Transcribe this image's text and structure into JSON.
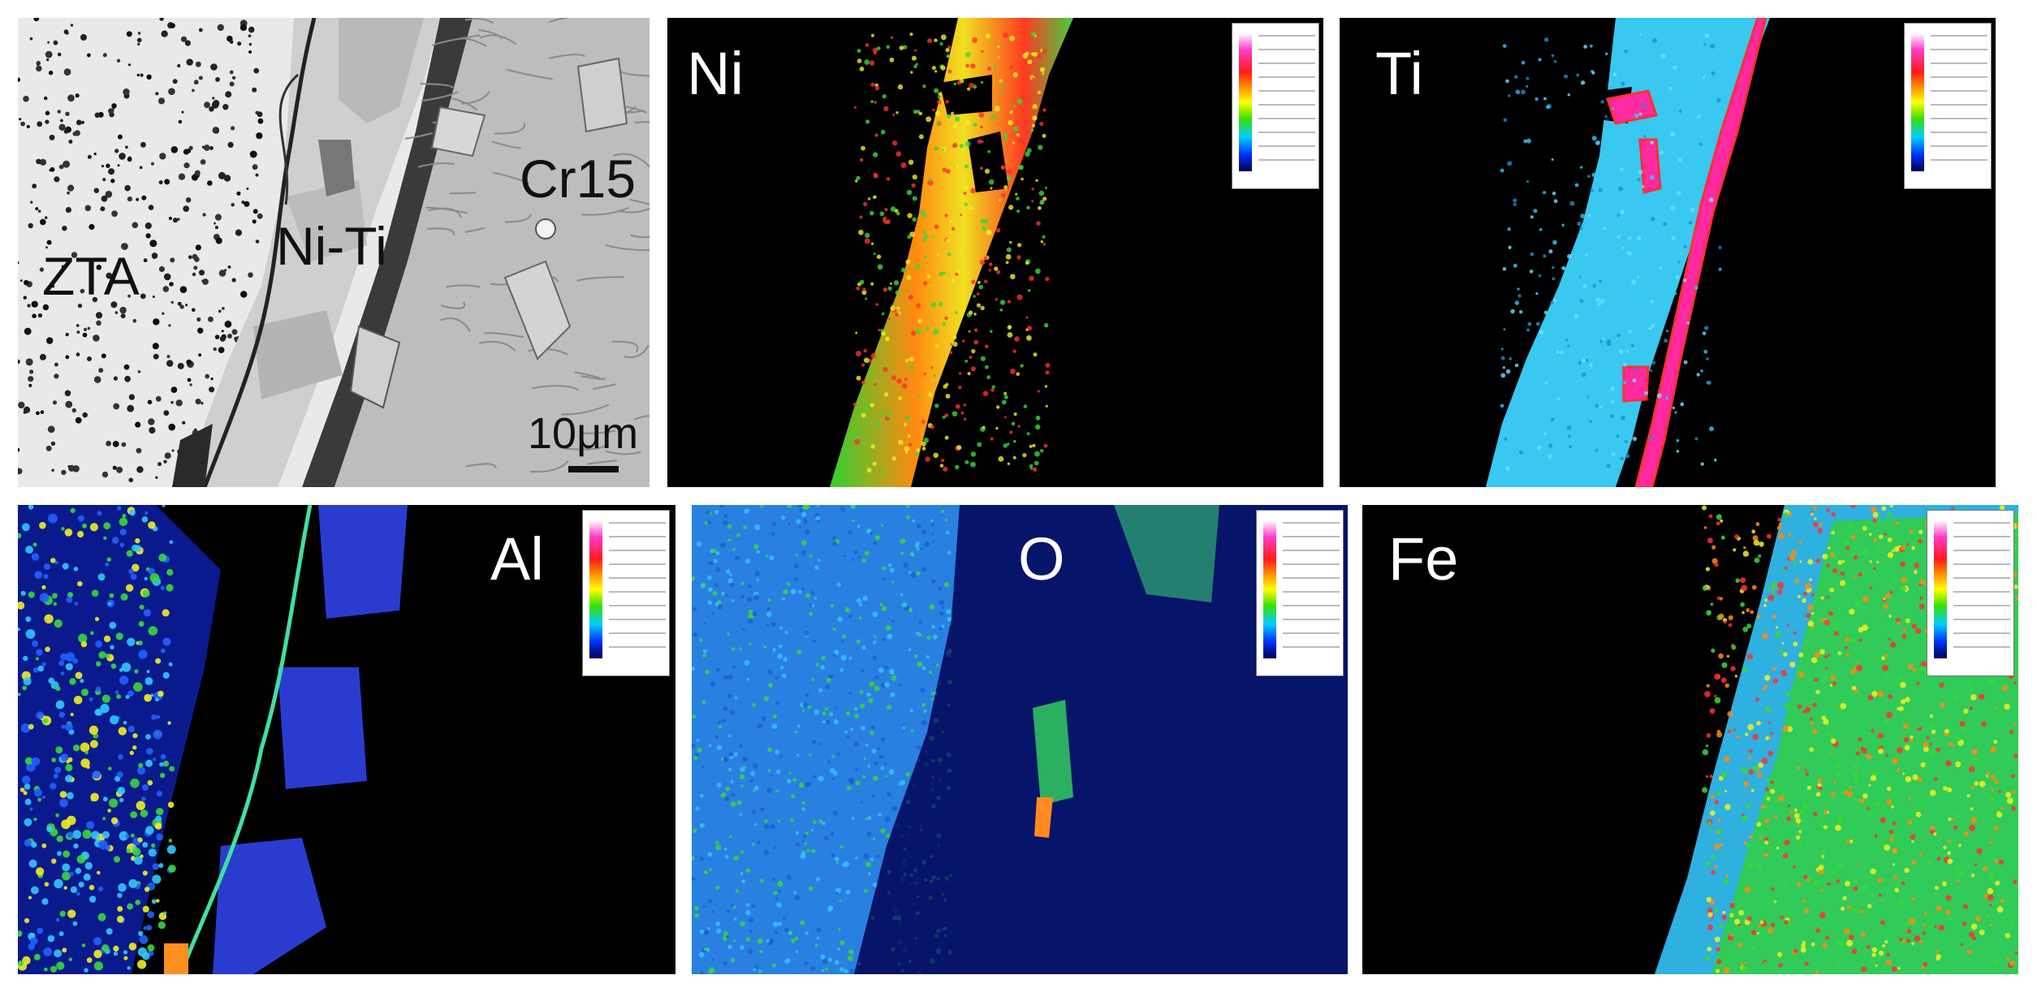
{
  "sem_panel": {
    "labels": {
      "zta": "ZTA",
      "niti": "Ni-Ti",
      "cr15": "Cr15"
    },
    "scale_bar": "10μm"
  },
  "maps": [
    {
      "element": "Ni"
    },
    {
      "element": "Ti"
    },
    {
      "element": "Al"
    },
    {
      "element": "O"
    },
    {
      "element": "Fe"
    }
  ],
  "colors": {
    "map_background": "#000000",
    "background_blue": "#0a1a8c",
    "cyan": "#32c8ff",
    "green": "#38d838",
    "yellow": "#f0f020",
    "red": "#ff3030",
    "magenta": "#ff2aa0"
  }
}
